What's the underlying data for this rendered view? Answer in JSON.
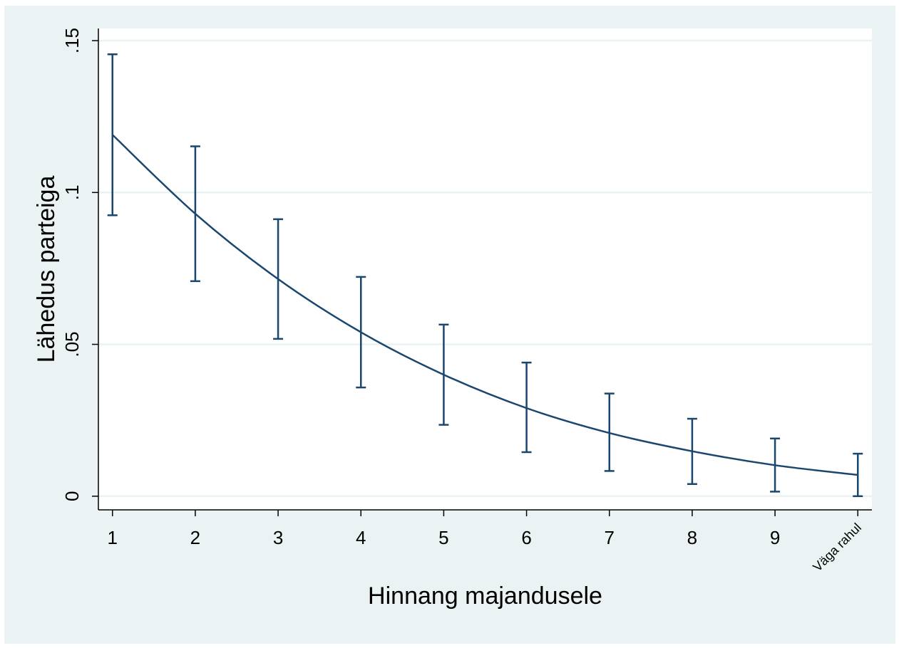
{
  "chart_data": {
    "type": "line",
    "xlabel": "Hinnang majandusele",
    "ylabel": "Lähedus parteiga",
    "x": [
      1,
      2,
      3,
      4,
      5,
      6,
      7,
      8,
      9,
      10
    ],
    "x_tick_labels": [
      "1",
      "2",
      "3",
      "4",
      "5",
      "6",
      "7",
      "8",
      "9",
      "Väga rahul"
    ],
    "y_ticks": [
      0,
      0.05,
      0.1,
      0.15
    ],
    "y_tick_labels": [
      "0",
      ".05",
      ".1",
      ".15"
    ],
    "ylim": [
      -0.0045,
      0.154
    ],
    "xlim": [
      0.83,
      10.17
    ],
    "series": [
      {
        "values": [
          0.119,
          0.093,
          0.0715,
          0.054,
          0.04,
          0.029,
          0.0208,
          0.0148,
          0.0102,
          0.007
        ],
        "ci_lower": [
          0.0925,
          0.0708,
          0.0518,
          0.0358,
          0.0235,
          0.0145,
          0.0083,
          0.004,
          0.0015,
          0.0
        ],
        "ci_upper": [
          0.1455,
          0.1152,
          0.0912,
          0.0722,
          0.0565,
          0.044,
          0.0338,
          0.0255,
          0.019,
          0.014
        ]
      }
    ],
    "grid": "horizontal",
    "colors": {
      "line": "#1a476f",
      "grid": "#eaf2f3",
      "plot_bg": "#ffffff",
      "outer_bg": "#eaf2f3"
    }
  }
}
